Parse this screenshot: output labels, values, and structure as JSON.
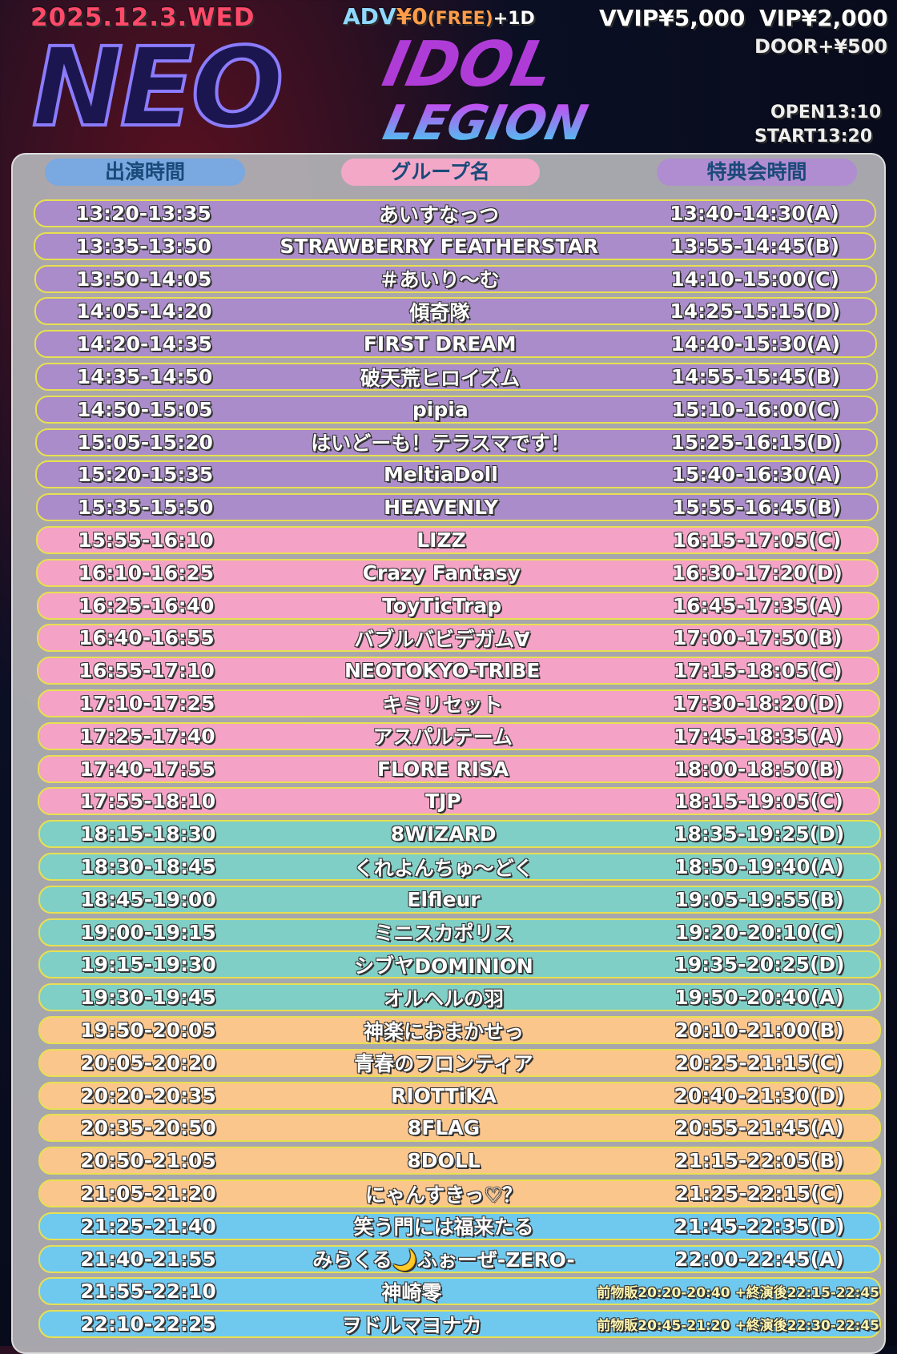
{
  "header": {
    "date": "2025.12.3.WED",
    "adv_label": "ADV",
    "adv_price": "¥0",
    "adv_free": "(FREE)",
    "adv_drink": "+1D",
    "vvip": "VVIP¥5,000",
    "vip": "VIP¥2,000",
    "door": "DOOR+¥500",
    "open": "OPEN13:10",
    "start": "START13:20",
    "logo_neo": "NEO",
    "logo_idol": "IDOL",
    "logo_legion": "LEGION"
  },
  "columns": {
    "time": "出演時間",
    "group": "グループ名",
    "bonus": "特典会時間"
  },
  "colors": {
    "purple": "#a98cc9",
    "pink": "#f4a2c6",
    "teal": "#7fcfc6",
    "orange": "#fbc68c",
    "blue": "#6fc9ef",
    "border": "#e8e050"
  },
  "rows": [
    {
      "time": "13:20-13:35",
      "group": "あいすなっつ",
      "bonus": "13:40-14:30(A)",
      "color": "purple"
    },
    {
      "time": "13:35-13:50",
      "group": "STRAWBERRY FEATHERSTAR",
      "bonus": "13:55-14:45(B)",
      "color": "purple"
    },
    {
      "time": "13:50-14:05",
      "group": "＃あいり〜む",
      "bonus": "14:10-15:00(C)",
      "color": "purple"
    },
    {
      "time": "14:05-14:20",
      "group": "傾奇隊",
      "bonus": "14:25-15:15(D)",
      "color": "purple"
    },
    {
      "time": "14:20-14:35",
      "group": "FIRST DREAM",
      "bonus": "14:40-15:30(A)",
      "color": "purple"
    },
    {
      "time": "14:35-14:50",
      "group": "破天荒ヒロイズム",
      "bonus": "14:55-15:45(B)",
      "color": "purple"
    },
    {
      "time": "14:50-15:05",
      "group": "pipia",
      "bonus": "15:10-16:00(C)",
      "color": "purple"
    },
    {
      "time": "15:05-15:20",
      "group": "はいどーも！テラスマです！",
      "bonus": "15:25-16:15(D)",
      "color": "purple"
    },
    {
      "time": "15:20-15:35",
      "group": "MeltiaDoll",
      "bonus": "15:40-16:30(A)",
      "color": "purple"
    },
    {
      "time": "15:35-15:50",
      "group": "HEAVENLY",
      "bonus": "15:55-16:45(B)",
      "color": "purple"
    },
    {
      "time": "15:55-16:10",
      "group": "LIZZ",
      "bonus": "16:15-17:05(C)",
      "color": "pink"
    },
    {
      "time": "16:10-16:25",
      "group": "Crazy Fantasy",
      "bonus": "16:30-17:20(D)",
      "color": "pink"
    },
    {
      "time": "16:25-16:40",
      "group": "ToyTicTrap",
      "bonus": "16:45-17:35(A)",
      "color": "pink"
    },
    {
      "time": "16:40-16:55",
      "group": "バブルバビデガム∀",
      "bonus": "17:00-17:50(B)",
      "color": "pink"
    },
    {
      "time": "16:55-17:10",
      "group": "NEOTOKYO-TRIBE",
      "bonus": "17:15-18:05(C)",
      "color": "pink"
    },
    {
      "time": "17:10-17:25",
      "group": "キミリセット",
      "bonus": "17:30-18:20(D)",
      "color": "pink"
    },
    {
      "time": "17:25-17:40",
      "group": "アスパルテーム",
      "bonus": "17:45-18:35(A)",
      "color": "pink"
    },
    {
      "time": "17:40-17:55",
      "group": "FLORE RISA",
      "bonus": "18:00-18:50(B)",
      "color": "pink"
    },
    {
      "time": "17:55-18:10",
      "group": "TJP",
      "bonus": "18:15-19:05(C)",
      "color": "pink"
    },
    {
      "time": "18:15-18:30",
      "group": "8WIZARD",
      "bonus": "18:35-19:25(D)",
      "color": "teal"
    },
    {
      "time": "18:30-18:45",
      "group": "くれよんちゅ〜どく",
      "bonus": "18:50-19:40(A)",
      "color": "teal"
    },
    {
      "time": "18:45-19:00",
      "group": "Elfleur",
      "bonus": "19:05-19:55(B)",
      "color": "teal"
    },
    {
      "time": "19:00-19:15",
      "group": "ミニスカポリス",
      "bonus": "19:20-20:10(C)",
      "color": "teal"
    },
    {
      "time": "19:15-19:30",
      "group": "シブヤDOMINION",
      "bonus": "19:35-20:25(D)",
      "color": "teal"
    },
    {
      "time": "19:30-19:45",
      "group": "オルヘルの羽",
      "bonus": "19:50-20:40(A)",
      "color": "teal"
    },
    {
      "time": "19:50-20:05",
      "group": "神楽におまかせっ",
      "bonus": "20:10-21:00(B)",
      "color": "orange"
    },
    {
      "time": "20:05-20:20",
      "group": "青春のフロンティア",
      "bonus": "20:25-21:15(C)",
      "color": "orange"
    },
    {
      "time": "20:20-20:35",
      "group": "RIOTTiKA",
      "bonus": "20:40-21:30(D)",
      "color": "orange"
    },
    {
      "time": "20:35-20:50",
      "group": "8FLAG",
      "bonus": "20:55-21:45(A)",
      "color": "orange"
    },
    {
      "time": "20:50-21:05",
      "group": "8DOLL",
      "bonus": "21:15-22:05(B)",
      "color": "orange"
    },
    {
      "time": "21:05-21:20",
      "group": "にゃんすきっ♡？",
      "bonus": "21:25-22:15(C)",
      "color": "orange"
    },
    {
      "time": "21:25-21:40",
      "group": "笑う門には福来たる",
      "bonus": "21:45-22:35(D)",
      "color": "blue"
    },
    {
      "time": "21:40-21:55",
      "group": "みらくる🌙ふぉーぜ-ZERO-",
      "bonus": "22:00-22:45(A)",
      "color": "blue"
    },
    {
      "time": "21:55-22:10",
      "group": "神崎零",
      "bonus": "前物販20:20-20:40 +終演後22:15-22:45",
      "color": "blue",
      "small": true
    },
    {
      "time": "22:10-22:25",
      "group": "ヲドルマヨナカ",
      "bonus": "前物販20:45-21:20 +終演後22:30-22:45",
      "color": "blue",
      "small": true
    }
  ]
}
